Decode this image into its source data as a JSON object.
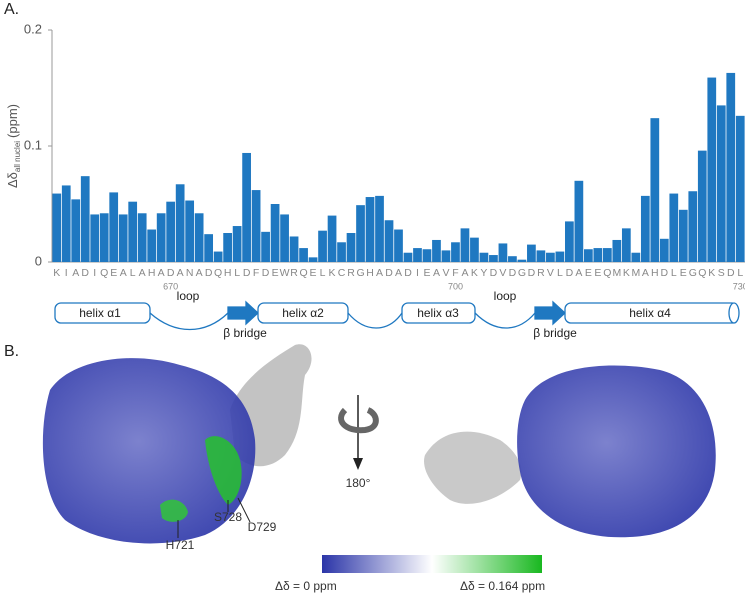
{
  "panels": {
    "a": "A.",
    "b": "B."
  },
  "chart_data": {
    "type": "bar",
    "ylabel": {
      "main": "Δδ",
      "sub": "all nuclei",
      "unit": "(ppm)"
    },
    "categories": [
      "K",
      "I",
      "A",
      "D",
      "I",
      "Q",
      "E",
      "A",
      "L",
      "A",
      "H",
      "A",
      "D",
      "A",
      "N",
      "A",
      "D",
      "Q",
      "H",
      "L",
      "D",
      "F",
      "D",
      "E",
      "W",
      "R",
      "Q",
      "E",
      "L",
      "K",
      "C",
      "R",
      "G",
      "H",
      "A",
      "D",
      "A",
      "D",
      "I",
      "E",
      "A",
      "V",
      "F",
      "A",
      "K",
      "Y",
      "D",
      "V",
      "D",
      "G",
      "D",
      "R",
      "V",
      "L",
      "D",
      "A",
      "E",
      "E",
      "Q",
      "M",
      "K",
      "M",
      "A",
      "H",
      "D",
      "L",
      "E",
      "G",
      "Q",
      "K",
      "S",
      "D",
      "L"
    ],
    "values": [
      0.059,
      0.066,
      0.054,
      0.074,
      0.041,
      0.042,
      0.06,
      0.041,
      0.052,
      0.042,
      0.028,
      0.042,
      0.052,
      0.067,
      0.053,
      0.042,
      0.024,
      0.009,
      0.025,
      0.031,
      0.094,
      0.062,
      0.026,
      0.05,
      0.041,
      0.022,
      0.012,
      0.004,
      0.027,
      0.04,
      0.017,
      0.025,
      0.049,
      0.056,
      0.057,
      0.036,
      0.028,
      0.008,
      0.012,
      0.011,
      0.019,
      0.01,
      0.017,
      0.029,
      0.021,
      0.008,
      0.006,
      0.016,
      0.005,
      0.002,
      0.015,
      0.01,
      0.008,
      0.009,
      0.035,
      0.07,
      0.011,
      0.012,
      0.012,
      0.019,
      0.029,
      0.008,
      0.057,
      0.124,
      0.02,
      0.059,
      0.045,
      0.061,
      0.096,
      0.159,
      0.135,
      0.163,
      0.126
    ],
    "color": "#1f78c1",
    "xlim": [
      657.5,
      730.5
    ],
    "xticks": [
      670,
      700,
      730
    ],
    "ylim": [
      0,
      0.2
    ],
    "yticks": [
      0,
      0.1,
      0.2
    ]
  },
  "structure": {
    "helix1": "helix α1",
    "loop1": "loop",
    "bridge1": "β bridge",
    "helix2": "helix α2",
    "helix3": "helix α3",
    "loop2": "loop",
    "bridge2": "β bridge",
    "helix4": "helix α4"
  },
  "surface": {
    "rotation": "180°",
    "residues": [
      "H721",
      "S728",
      "D729"
    ],
    "scale_min": "Δδ = 0 ppm",
    "scale_max": "Δδ = 0.164 ppm"
  }
}
